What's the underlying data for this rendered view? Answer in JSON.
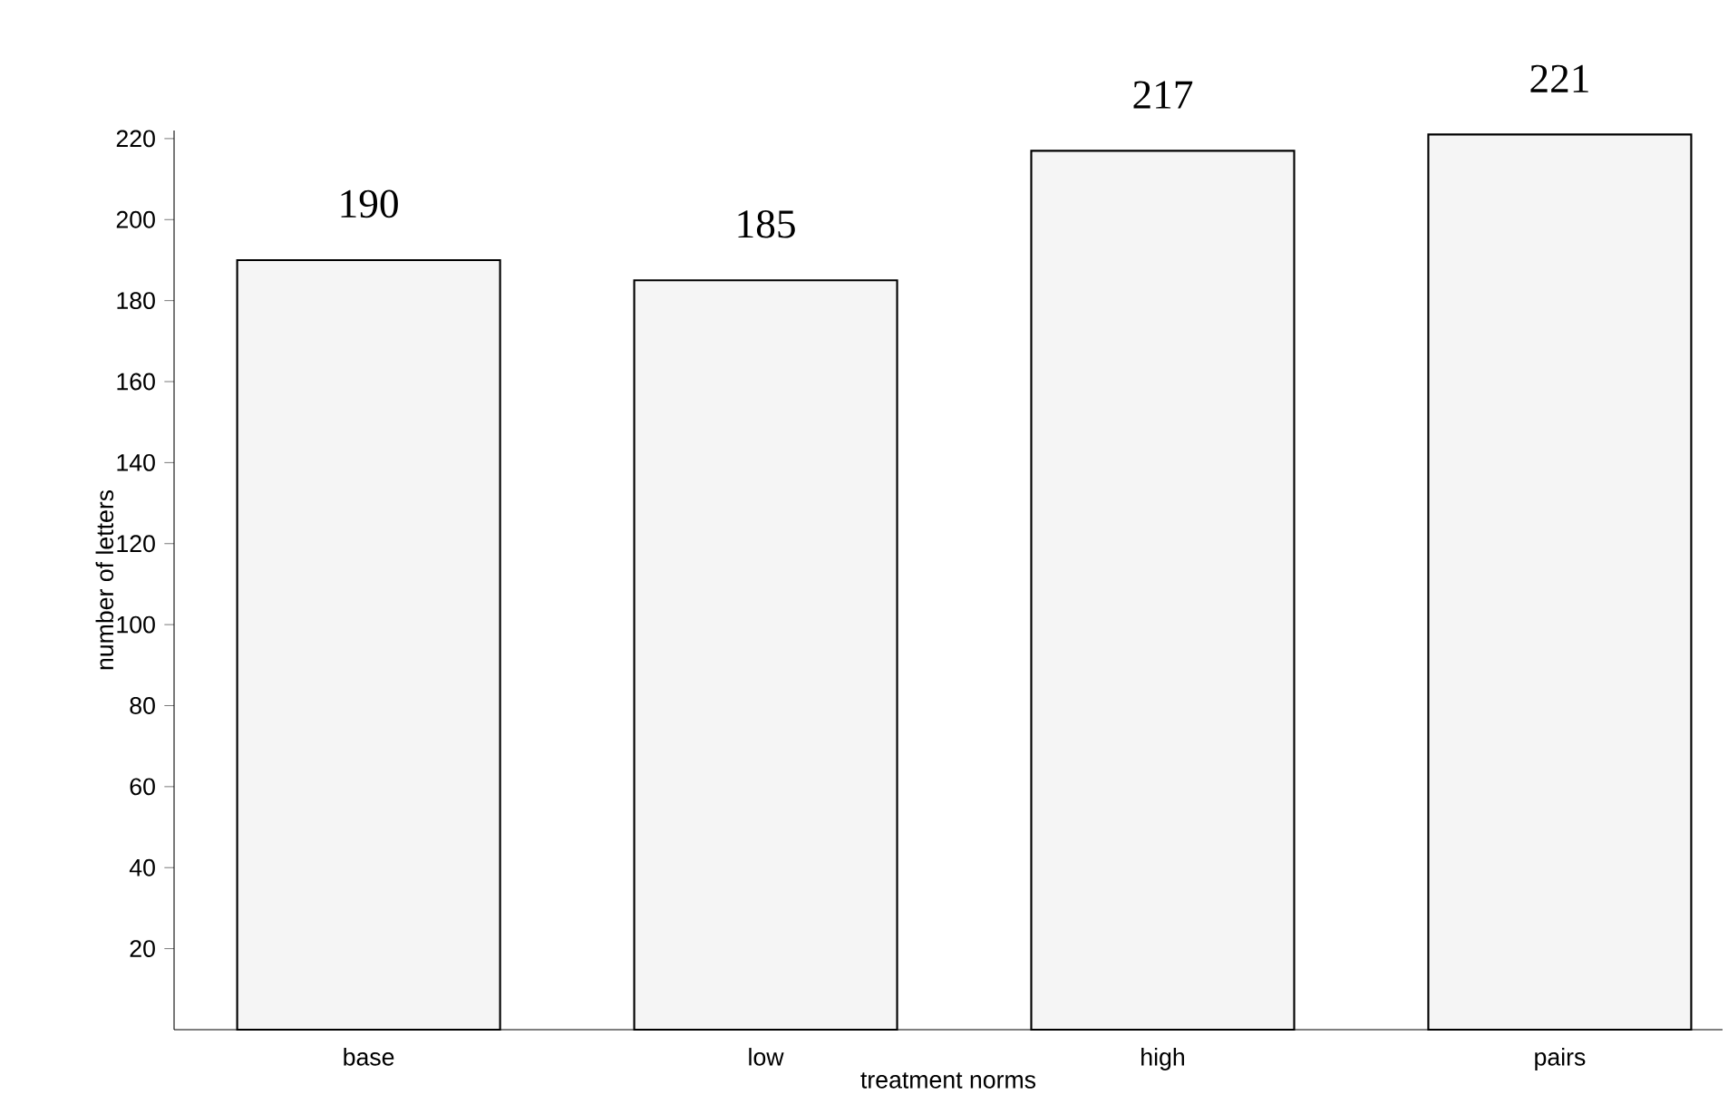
{
  "chart_data": {
    "type": "bar",
    "xlabel": "treatment norms",
    "ylabel": "number of letters",
    "categories": [
      "base",
      "low",
      "high",
      "pairs"
    ],
    "values": [
      190,
      185,
      217,
      221
    ],
    "value_labels": [
      "190",
      "185",
      "217",
      "221"
    ],
    "color": "#f5f5f5",
    "ylim": [
      0,
      222
    ],
    "yticks": [
      20,
      40,
      60,
      80,
      100,
      120,
      140,
      160,
      180,
      200,
      220
    ],
    "grid": false
  }
}
